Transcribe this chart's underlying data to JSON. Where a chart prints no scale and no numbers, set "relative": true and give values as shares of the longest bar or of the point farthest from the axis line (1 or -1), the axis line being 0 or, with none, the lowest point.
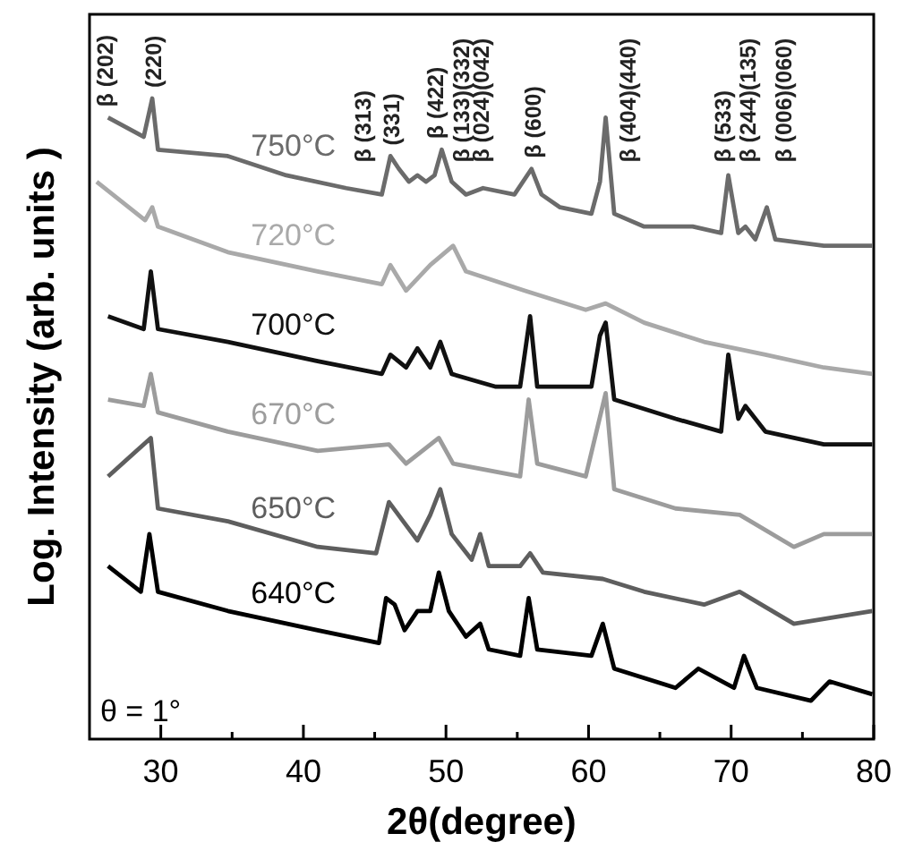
{
  "chart_data": {
    "type": "line",
    "relative": true,
    "xlabel": "2θ(degree)",
    "ylabel": "Log. Intensity (arb. units )",
    "xlim": [
      25,
      80
    ],
    "xticks": [
      30,
      {
        "value": 35,
        "label": null
      },
      40,
      {
        "value": 45,
        "label": null
      },
      50,
      {
        "value": 55,
        "label": null
      },
      60,
      {
        "value": 65,
        "label": null
      },
      70,
      {
        "value": 75,
        "label": null
      },
      80
    ],
    "marker": "none",
    "line_style": "solid",
    "series": [
      {
        "name": "750°C",
        "color": "#6b6b6b",
        "x": [
          26.3,
          28.8,
          29.4,
          29.8,
          34.7,
          38.8,
          43,
          45.5,
          46.1,
          46.7,
          47.4,
          48,
          48.6,
          49.2,
          49.7,
          50.4,
          51.4,
          52.6,
          54.8,
          56,
          56.7,
          58,
          60.2,
          60.8,
          61.2,
          61.8,
          63.9,
          67.3,
          69.3,
          69.8,
          70.5,
          71,
          71.7,
          72.5,
          73.1,
          76.5,
          79.9
        ],
        "values": [
          0.97,
          0.94,
          1,
          0.92,
          0.91,
          0.88,
          0.86,
          0.85,
          0.91,
          0.89,
          0.87,
          0.88,
          0.87,
          0.88,
          0.92,
          0.87,
          0.85,
          0.86,
          0.85,
          0.89,
          0.85,
          0.83,
          0.82,
          0.87,
          0.97,
          0.82,
          0.8,
          0.8,
          0.79,
          0.88,
          0.79,
          0.8,
          0.78,
          0.83,
          0.78,
          0.77,
          0.77
        ]
      },
      {
        "name": "720°C",
        "color": "#a9a9a9",
        "x": [
          25.5,
          28.9,
          29.4,
          29.8,
          34.7,
          41,
          45.5,
          46.1,
          47.2,
          48.9,
          50.5,
          51.4,
          55.5,
          59.8,
          61.2,
          63.9,
          68.1,
          72.4,
          76.5,
          79.9
        ],
        "values": [
          0.87,
          0.81,
          0.83,
          0.8,
          0.76,
          0.73,
          0.71,
          0.74,
          0.7,
          0.74,
          0.77,
          0.73,
          0.7,
          0.67,
          0.68,
          0.65,
          0.62,
          0.6,
          0.58,
          0.57
        ]
      },
      {
        "name": "700°C",
        "color": "#111111",
        "x": [
          26.3,
          28.8,
          29.3,
          29.8,
          34.7,
          41,
          45.5,
          46.1,
          47.2,
          48,
          48.9,
          49.6,
          50.4,
          53.5,
          55.2,
          55.9,
          56.4,
          60.2,
          60.8,
          61.2,
          61.8,
          66.1,
          69.3,
          69.8,
          70.5,
          71,
          72.4,
          76.5,
          79.9
        ],
        "values": [
          0.66,
          0.64,
          0.73,
          0.64,
          0.62,
          0.59,
          0.57,
          0.6,
          0.58,
          0.61,
          0.58,
          0.62,
          0.57,
          0.55,
          0.55,
          0.66,
          0.55,
          0.55,
          0.63,
          0.65,
          0.53,
          0.5,
          0.48,
          0.6,
          0.5,
          0.52,
          0.48,
          0.46,
          0.46
        ]
      },
      {
        "name": "670°C",
        "color": "#9c9c9c",
        "x": [
          26.3,
          28.8,
          29.3,
          29.8,
          34.7,
          41,
          46,
          47.2,
          49.5,
          50.5,
          55.2,
          55.8,
          56.4,
          59.8,
          61.2,
          61.8,
          66.1,
          70.6,
          74.4,
          76.5,
          79.9
        ],
        "values": [
          0.53,
          0.52,
          0.57,
          0.51,
          0.48,
          0.45,
          0.46,
          0.43,
          0.47,
          0.43,
          0.41,
          0.53,
          0.43,
          0.41,
          0.54,
          0.39,
          0.36,
          0.35,
          0.3,
          0.32,
          0.32
        ]
      },
      {
        "name": "650°C",
        "color": "#5e5e5e",
        "x": [
          26.3,
          29.3,
          29.8,
          34.7,
          41,
          45.1,
          46,
          47,
          48,
          48.9,
          49.6,
          50.4,
          51.8,
          52.4,
          53,
          55.2,
          55.9,
          56.8,
          61,
          63.9,
          68.1,
          70.6,
          74.4,
          79.9
        ],
        "values": [
          0.41,
          0.47,
          0.36,
          0.34,
          0.3,
          0.29,
          0.37,
          0.34,
          0.31,
          0.35,
          0.39,
          0.32,
          0.28,
          0.32,
          0.27,
          0.27,
          0.29,
          0.26,
          0.25,
          0.23,
          0.21,
          0.23,
          0.18,
          0.2
        ]
      },
      {
        "name": "640°C",
        "color": "#000000",
        "x": [
          26.3,
          28.6,
          29.2,
          29.8,
          34.7,
          41,
          45.3,
          45.8,
          46.4,
          47.1,
          48,
          48.9,
          49.5,
          50.2,
          51.4,
          52.4,
          53,
          55.2,
          55.8,
          56.4,
          60.2,
          61,
          61.8,
          66.1,
          67.7,
          70.2,
          70.9,
          71.8,
          75.6,
          76.9,
          79.9
        ],
        "values": [
          0.27,
          0.23,
          0.32,
          0.23,
          0.2,
          0.17,
          0.15,
          0.22,
          0.21,
          0.17,
          0.2,
          0.2,
          0.26,
          0.2,
          0.16,
          0.18,
          0.14,
          0.13,
          0.22,
          0.14,
          0.13,
          0.18,
          0.11,
          0.08,
          0.11,
          0.08,
          0.13,
          0.08,
          0.06,
          0.09,
          0.07
        ]
      }
    ],
    "annotations": [
      "β (202)",
      "(220)",
      "β (313)",
      "(331)",
      "β (422)",
      "β (133)(332)",
      "β (024)(042)",
      "β (600)",
      "β (404)(440)",
      "β (533)",
      "β (244)(135)",
      "β (006)(060)",
      "θ = 1°"
    ]
  }
}
